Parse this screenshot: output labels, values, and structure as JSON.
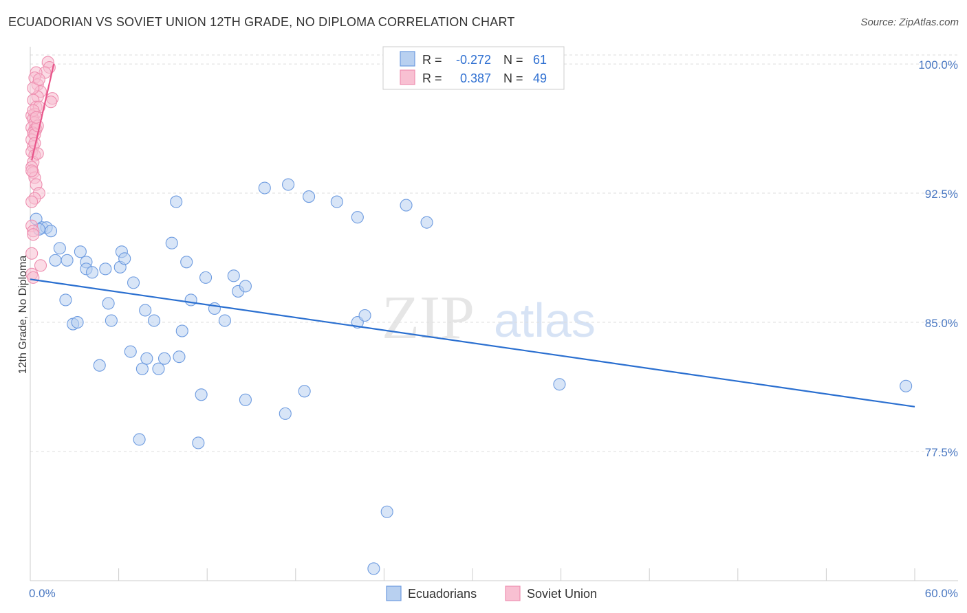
{
  "title": "ECUADORIAN VS SOVIET UNION 12TH GRADE, NO DIPLOMA CORRELATION CHART",
  "source": "Source: ZipAtlas.com",
  "watermark": {
    "zip": "ZIP",
    "atlas": "atlas"
  },
  "colors": {
    "blue_fill": "#b8d0f0",
    "blue_stroke": "#6d9be0",
    "blue_line": "#2a6fd0",
    "pink_fill": "#f8c0d2",
    "pink_stroke": "#ee8fb0",
    "pink_line": "#e8558a",
    "grid": "#dddddd",
    "tick_label": "#4a78c2"
  },
  "legend": {
    "r_label": "R =",
    "n_label": "N =",
    "rows": [
      {
        "name": "Ecuadorians",
        "r": "-0.272",
        "n": "61"
      },
      {
        "name": "Soviet Union",
        "r": "0.387",
        "n": "49"
      }
    ]
  },
  "chart_data": {
    "type": "scatter",
    "title": "ECUADORIAN VS SOVIET UNION 12TH GRADE, NO DIPLOMA CORRELATION CHART",
    "xlabel": "",
    "ylabel": "12th Grade, No Diploma",
    "xlim": [
      0,
      60
    ],
    "ylim": [
      70.0,
      101.0
    ],
    "x_tick_labels": {
      "left": "0.0%",
      "right": "60.0%"
    },
    "x_minor_ticks": [
      6,
      12,
      18,
      24,
      30,
      36,
      42,
      48,
      54,
      60
    ],
    "y_ticks": [
      77.5,
      85.0,
      92.5,
      100.0
    ],
    "y_tick_labels": [
      "77.5%",
      "85.0%",
      "92.5%",
      "100.0%"
    ],
    "grid": true,
    "legend_position": "top-center",
    "series": [
      {
        "name": "Ecuadorians",
        "color": "blue",
        "trend": {
          "x": [
            0,
            60
          ],
          "y": [
            87.5,
            80.1
          ]
        },
        "points": [
          [
            0.4,
            91.0
          ],
          [
            0.8,
            90.5
          ],
          [
            1.1,
            90.5
          ],
          [
            1.4,
            90.3
          ],
          [
            0.6,
            90.4
          ],
          [
            1.7,
            88.6
          ],
          [
            2.0,
            89.3
          ],
          [
            2.5,
            88.6
          ],
          [
            3.4,
            89.1
          ],
          [
            3.8,
            88.5
          ],
          [
            3.8,
            88.1
          ],
          [
            4.2,
            87.9
          ],
          [
            5.1,
            88.1
          ],
          [
            6.1,
            88.2
          ],
          [
            6.2,
            89.1
          ],
          [
            6.4,
            88.7
          ],
          [
            7.0,
            87.3
          ],
          [
            2.4,
            86.3
          ],
          [
            2.9,
            84.9
          ],
          [
            3.2,
            85.0
          ],
          [
            5.3,
            86.1
          ],
          [
            5.5,
            85.1
          ],
          [
            4.7,
            82.5
          ],
          [
            6.8,
            83.3
          ],
          [
            7.6,
            82.3
          ],
          [
            7.9,
            82.9
          ],
          [
            7.8,
            85.7
          ],
          [
            8.4,
            85.1
          ],
          [
            9.1,
            82.9
          ],
          [
            8.7,
            82.3
          ],
          [
            9.6,
            89.6
          ],
          [
            9.9,
            92.0
          ],
          [
            10.1,
            83.0
          ],
          [
            10.3,
            84.5
          ],
          [
            10.6,
            88.5
          ],
          [
            10.9,
            86.3
          ],
          [
            11.6,
            80.8
          ],
          [
            11.9,
            87.6
          ],
          [
            11.4,
            78.0
          ],
          [
            12.5,
            85.8
          ],
          [
            13.2,
            85.1
          ],
          [
            13.8,
            87.7
          ],
          [
            14.1,
            86.8
          ],
          [
            14.6,
            87.1
          ],
          [
            14.6,
            80.5
          ],
          [
            15.9,
            92.8
          ],
          [
            17.3,
            79.7
          ],
          [
            17.5,
            93.0
          ],
          [
            18.6,
            81.0
          ],
          [
            18.9,
            92.3
          ],
          [
            20.8,
            92.0
          ],
          [
            22.2,
            91.1
          ],
          [
            22.2,
            85.0
          ],
          [
            22.7,
            85.4
          ],
          [
            24.2,
            74.0
          ],
          [
            23.3,
            70.7
          ],
          [
            25.5,
            91.8
          ],
          [
            26.9,
            90.8
          ],
          [
            35.9,
            81.4
          ],
          [
            59.4,
            81.3
          ],
          [
            7.4,
            78.2
          ]
        ]
      },
      {
        "name": "Soviet Union",
        "color": "pink",
        "trend": {
          "x": [
            0.1,
            1.6
          ],
          "y": [
            94.4,
            100.0
          ]
        },
        "points": [
          [
            1.2,
            100.1
          ],
          [
            1.3,
            99.8
          ],
          [
            1.0,
            99.5
          ],
          [
            0.4,
            99.5
          ],
          [
            0.3,
            99.2
          ],
          [
            0.5,
            98.8
          ],
          [
            0.7,
            98.4
          ],
          [
            0.5,
            98.1
          ],
          [
            1.5,
            98.0
          ],
          [
            0.2,
            97.9
          ],
          [
            0.4,
            97.5
          ],
          [
            0.6,
            97.5
          ],
          [
            0.3,
            97.1
          ],
          [
            0.1,
            97.0
          ],
          [
            0.2,
            96.8
          ],
          [
            0.3,
            96.6
          ],
          [
            0.1,
            96.3
          ],
          [
            0.3,
            96.2
          ],
          [
            0.4,
            96.2
          ],
          [
            0.2,
            96.0
          ],
          [
            0.1,
            95.6
          ],
          [
            0.2,
            95.2
          ],
          [
            0.1,
            94.9
          ],
          [
            0.3,
            94.7
          ],
          [
            0.2,
            94.3
          ],
          [
            0.1,
            94.0
          ],
          [
            0.2,
            93.7
          ],
          [
            0.3,
            93.4
          ],
          [
            0.4,
            93.0
          ],
          [
            0.6,
            92.5
          ],
          [
            0.3,
            92.2
          ],
          [
            0.1,
            90.6
          ],
          [
            0.2,
            90.3
          ],
          [
            0.1,
            89.0
          ],
          [
            0.7,
            88.3
          ],
          [
            0.1,
            87.8
          ],
          [
            0.2,
            87.6
          ],
          [
            0.2,
            98.6
          ],
          [
            0.3,
            95.9
          ],
          [
            0.5,
            96.4
          ],
          [
            0.6,
            99.1
          ],
          [
            0.1,
            93.8
          ],
          [
            0.2,
            97.3
          ],
          [
            1.4,
            97.8
          ],
          [
            0.4,
            96.9
          ],
          [
            0.3,
            95.4
          ],
          [
            0.1,
            92.0
          ],
          [
            0.2,
            90.1
          ],
          [
            0.5,
            94.8
          ]
        ]
      }
    ]
  },
  "bottom_legend": [
    {
      "label": "Ecuadorians",
      "color": "blue"
    },
    {
      "label": "Soviet Union",
      "color": "pink"
    }
  ]
}
